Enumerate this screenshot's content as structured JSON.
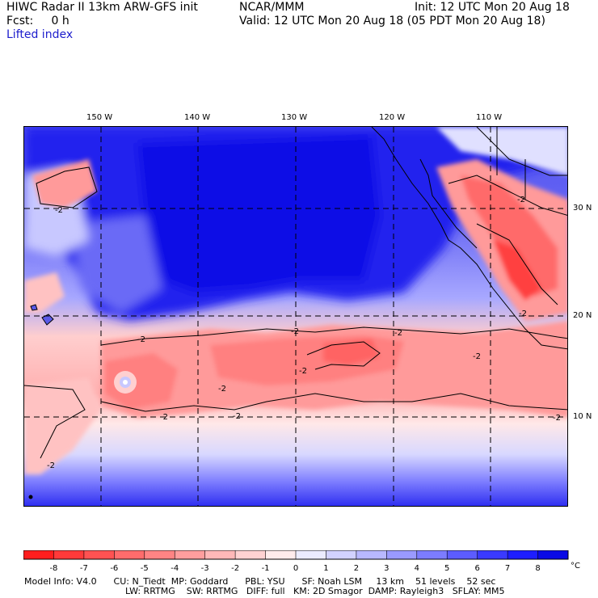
{
  "header": {
    "title": "HIWC Radar II 13km ARW-GFS init",
    "org": "NCAR/MMM",
    "init": "Init: 12 UTC Mon 20 Aug 18",
    "fcst": "Fcst:     0 h",
    "valid": "Valid: 12 UTC Mon 20 Aug 18 (05 PDT Mon 20 Aug 18)",
    "field": "Lifted index"
  },
  "map": {
    "lon_labels": [
      "150 W",
      "140 W",
      "130 W",
      "120 W",
      "110 W"
    ],
    "lat_labels": [
      "30 N",
      "20 N",
      "10 N"
    ],
    "contour_labels": [
      "-2",
      "-2",
      "-2",
      "-2",
      "-2",
      "-2",
      "-2",
      "-2",
      "-2",
      "-2",
      "-2",
      "-2",
      "-2"
    ]
  },
  "scale": {
    "ticks": [
      "-8",
      "-7",
      "-6",
      "-5",
      "-4",
      "-3",
      "-2",
      "-1",
      "0",
      "1",
      "2",
      "3",
      "4",
      "5",
      "6",
      "7",
      "8"
    ],
    "unit": "°C",
    "colors": [
      "#ff1e1e",
      "#ff3a3a",
      "#ff5252",
      "#ff6c6c",
      "#ff8484",
      "#ff9e9e",
      "#ffb8b8",
      "#ffd2d2",
      "#ffecec",
      "#ececff",
      "#d2d2ff",
      "#b8b8ff",
      "#9a9aff",
      "#7c7cff",
      "#5c5cff",
      "#3a3aff",
      "#1e1eff",
      "#0a0ae6"
    ]
  },
  "footer": {
    "line1": "Model Info: V4.0      CU: N_Tiedt  MP: Goddard      PBL: YSU      SF: Noah LSM     13 km    51 levels    52 sec",
    "line2": "LW: RRTMG    SW: RRTMG   DIFF: full   KM: 2D Smagor  DAMP: Rayleigh3   SFLAY: MM5"
  }
}
